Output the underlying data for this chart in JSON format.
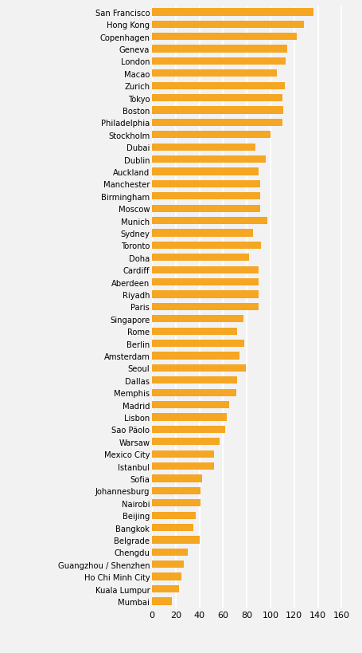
{
  "cities": [
    "San Francisco",
    "Hong Kong",
    "Copenhagen",
    "Geneva",
    "London",
    "Macao",
    "Zurich",
    "Tokyo",
    "Boston",
    "Philadelphia",
    "Stockholm",
    "Dubai",
    "Dublin",
    "Auckland",
    "Manchester",
    "Birmingham",
    "Moscow",
    "Munich",
    "Sydney",
    "Toronto",
    "Doha",
    "Cardiff",
    "Aberdeen",
    "Riyadh",
    "Paris",
    "Singapore",
    "Rome",
    "Berlin",
    "Amsterdam",
    "Seoul",
    "Dallas",
    "Memphis",
    "Madrid",
    "Lisbon",
    "Sao Päolo",
    "Warsaw",
    "Mexico City",
    "Istanbul",
    "Sofia",
    "Johannesburg",
    "Nairobi",
    "Beijing",
    "Bangkok",
    "Belgrade",
    "Chengdu",
    "Guangzhou / Shenzhen",
    "Ho Chi Minh City",
    "Kuala Lumpur",
    "Mumbai"
  ],
  "values": [
    136,
    128,
    122,
    114,
    113,
    105,
    112,
    110,
    111,
    110,
    100,
    87,
    96,
    90,
    91,
    91,
    91,
    97,
    85,
    92,
    82,
    90,
    90,
    90,
    90,
    77,
    72,
    78,
    74,
    79,
    72,
    71,
    65,
    63,
    62,
    57,
    52,
    52,
    42,
    41,
    41,
    37,
    35,
    40,
    30,
    27,
    25,
    23,
    17
  ],
  "bar_color": "#F5A623",
  "background_color": "#F2F2F2",
  "grid_color": "#FFFFFF",
  "xlim": [
    0,
    168
  ],
  "xticks": [
    0,
    20,
    40,
    60,
    80,
    100,
    120,
    140,
    160
  ],
  "bar_height": 0.6,
  "figsize": [
    4.55,
    8.2
  ],
  "dpi": 100
}
